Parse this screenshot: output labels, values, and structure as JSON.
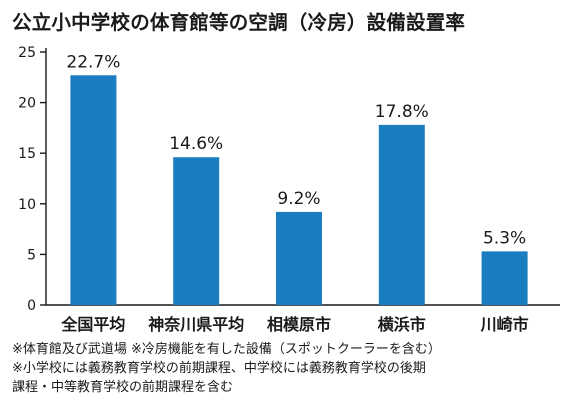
{
  "chart_data": {
    "type": "bar",
    "title": "公立小中学校の体育館等の空調（冷房）設備設置率",
    "categories": [
      "全国平均",
      "神奈川県平均",
      "相模原市",
      "横浜市",
      "川崎市"
    ],
    "values": [
      22.7,
      14.6,
      9.2,
      17.8,
      5.3
    ],
    "data_labels": [
      "22.7%",
      "14.6%",
      "9.2%",
      "17.8%",
      "5.3%"
    ],
    "y_ticks": [
      0,
      5,
      10,
      15,
      20,
      25
    ],
    "ylim": [
      0,
      25
    ],
    "xlabel": "",
    "ylabel": "",
    "grid": false,
    "bar_color": "#1a7dbf"
  },
  "notes": [
    "※体育館及び武道場 ※冷房機能を有した設備（スポットクーラーを含む）",
    "※小学校には義務教育学校の前期課程、中学校には義務教育学校の後期",
    "課程・中等教育学校の前期課程を含む"
  ]
}
